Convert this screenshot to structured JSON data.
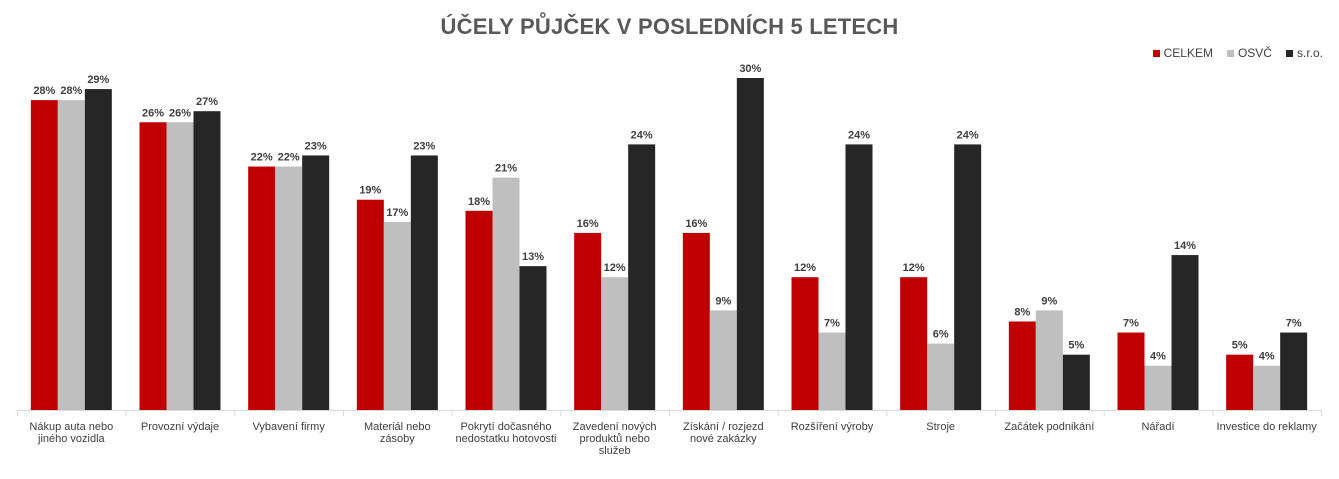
{
  "chart_data": {
    "type": "bar",
    "title": "ÚČELY PŮJČEK V POSLEDNÍCH 5 LETECH",
    "xlabel": "",
    "ylabel": "",
    "ylim": [
      0,
      30
    ],
    "grid": false,
    "legend_position": "top-right",
    "categories": [
      [
        "Nákup auta nebo",
        "jiného vozidla"
      ],
      [
        "Provozní výdaje"
      ],
      [
        "Vybavení firmy"
      ],
      [
        "Materiál nebo",
        "zásoby"
      ],
      [
        "Pokrytí dočasného",
        "nedostatku hotovosti"
      ],
      [
        "Zavedení nových",
        "produktů nebo",
        "služeb"
      ],
      [
        "Získání / rozjezd",
        "nové zakázky"
      ],
      [
        "Rozšíření výroby"
      ],
      [
        "Stroje"
      ],
      [
        "Začátek podnikání"
      ],
      [
        "Nářadí"
      ],
      [
        "Investice do reklamy"
      ]
    ],
    "series": [
      {
        "name": "CELKEM",
        "color": "#C00000",
        "values": [
          28,
          26,
          22,
          19,
          18,
          16,
          16,
          12,
          12,
          8,
          7,
          5
        ]
      },
      {
        "name": "OSVČ",
        "color": "#BFBFBF",
        "values": [
          28,
          26,
          22,
          17,
          21,
          12,
          9,
          7,
          6,
          9,
          4,
          4
        ]
      },
      {
        "name": "s.r.o.",
        "color": "#262626",
        "values": [
          29,
          27,
          23,
          23,
          13,
          24,
          30,
          24,
          24,
          5,
          14,
          7
        ]
      }
    ],
    "value_suffix": "%"
  }
}
